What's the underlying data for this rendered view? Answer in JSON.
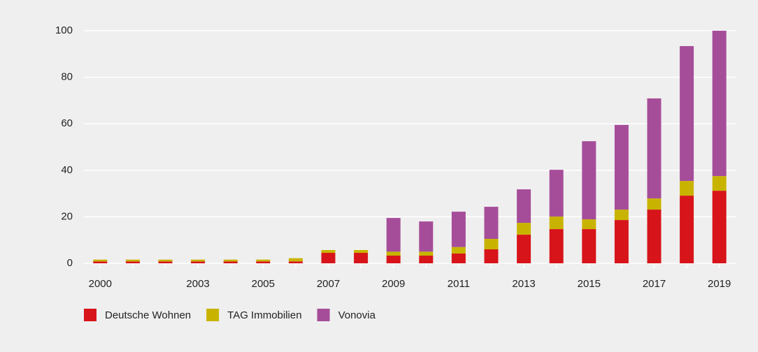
{
  "chart_data": {
    "type": "bar",
    "stacked": true,
    "categories": [
      "2000",
      null,
      null,
      "2003",
      null,
      "2005",
      null,
      "2007",
      null,
      "2009",
      null,
      "2011",
      null,
      "2013",
      null,
      "2015",
      null,
      "2017",
      null,
      "2019"
    ],
    "series": [
      {
        "name": "Deutsche Wohnen",
        "color": "#d7141a",
        "values": [
          0.8,
          0.8,
          0.8,
          0.8,
          0.8,
          0.8,
          0.8,
          4.5,
          4.5,
          3.3,
          3.3,
          4.2,
          6,
          12.3,
          14.7,
          14.7,
          18.6,
          23.1,
          29.1,
          31.2
        ]
      },
      {
        "name": "TAG Immobilien",
        "color": "#c8b400",
        "values": [
          0.8,
          0.8,
          0.8,
          0.8,
          0.8,
          0.8,
          1.4,
          1.2,
          1.2,
          1.7,
          1.7,
          2.8,
          4.5,
          5.1,
          5.4,
          4.2,
          4.5,
          4.8,
          6.3,
          6.3
        ]
      },
      {
        "name": "Vonovia",
        "color": "#a64d9a",
        "values": [
          0,
          0,
          0,
          0,
          0,
          0,
          0,
          0,
          0,
          14.5,
          13,
          15.2,
          13.8,
          14.4,
          20.1,
          33.6,
          36.4,
          43,
          58,
          62.5
        ]
      }
    ],
    "ylim": [
      0,
      100
    ],
    "yticks": [
      0,
      20,
      40,
      60,
      80,
      100
    ],
    "grid": true,
    "legend": "bottom-left"
  }
}
